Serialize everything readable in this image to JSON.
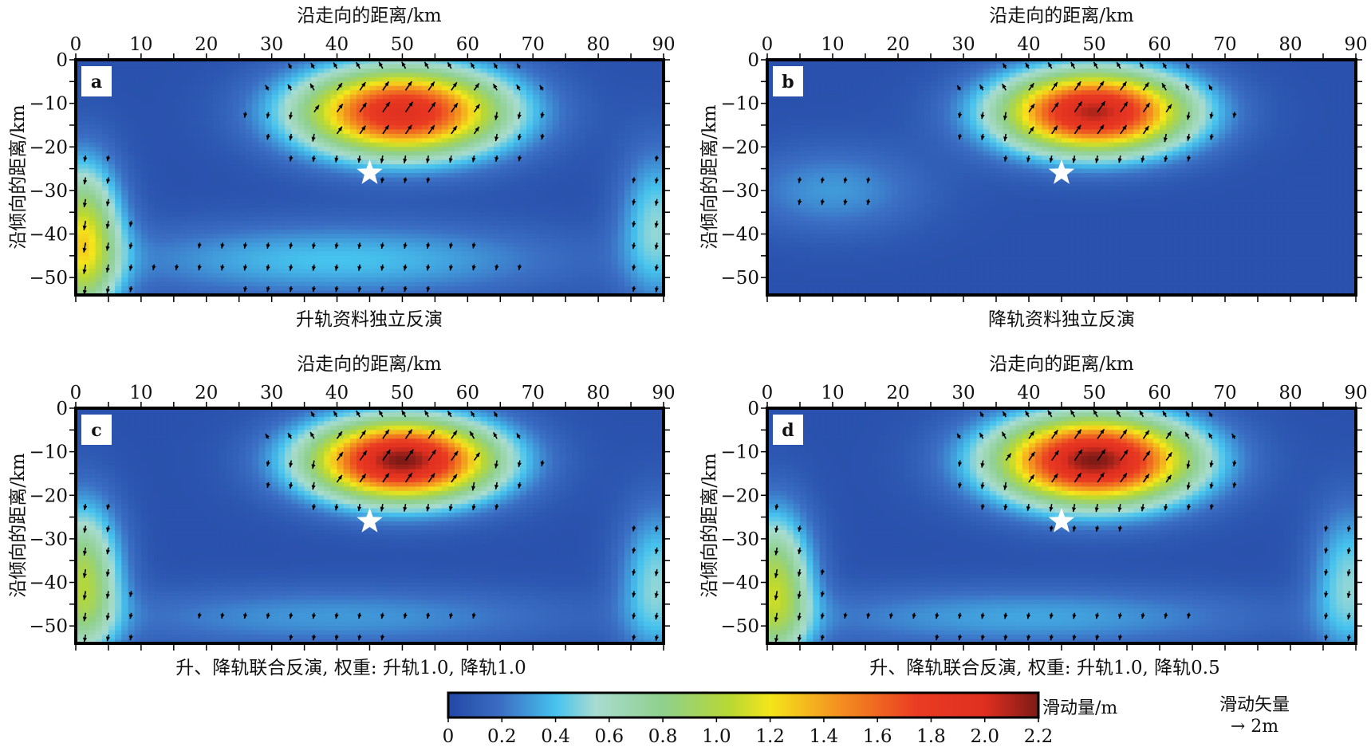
{
  "figure": {
    "colorbar": {
      "label": "滑动量/m",
      "min": 0,
      "max": 2.2,
      "ticks": [
        "0",
        "0.2",
        "0.4",
        "0.6",
        "0.8",
        "1.0",
        "1.2",
        "1.4",
        "1.6",
        "1.8",
        "2.0",
        "2.2"
      ],
      "stops": [
        {
          "v": 0.0,
          "c": "#2347a5"
        },
        {
          "v": 0.2,
          "c": "#3b6fc4"
        },
        {
          "v": 0.4,
          "c": "#46c3ee"
        },
        {
          "v": 0.55,
          "c": "#a8dcd0"
        },
        {
          "v": 0.8,
          "c": "#8fd08c"
        },
        {
          "v": 1.05,
          "c": "#b8d833"
        },
        {
          "v": 1.2,
          "c": "#f4e61b"
        },
        {
          "v": 1.45,
          "c": "#f49220"
        },
        {
          "v": 1.75,
          "c": "#ea3b22"
        },
        {
          "v": 2.0,
          "c": "#df2f20"
        },
        {
          "v": 2.2,
          "c": "#7d1a16"
        }
      ]
    },
    "vector_legend": {
      "title": "滑动矢量",
      "scale_label": "→ 2m"
    },
    "epicenter_marker": "white-star"
  },
  "chart_data": [
    {
      "type": "heatmap",
      "panel_label": "a",
      "title": "沿走向的距离/km",
      "caption": "升轨资料独立反演",
      "xlabel": "沿走向的距离/km",
      "ylabel": "沿倾向的距离/km",
      "xlim": [
        0,
        90
      ],
      "ylim": [
        -54,
        0
      ],
      "xticks": [
        "0",
        "10",
        "20",
        "30",
        "40",
        "50",
        "60",
        "70",
        "80",
        "90"
      ],
      "yticks": [
        "0",
        "-10",
        "-20",
        "-30",
        "-40",
        "-50"
      ],
      "epicenter": {
        "x": 45,
        "y": -26
      },
      "peak_slip_m": 1.9,
      "slip_patches": [
        {
          "x": 50,
          "y": -12,
          "sx": 11,
          "sy": 7,
          "amp": 1.9
        },
        {
          "x": 1,
          "y": -42,
          "sx": 4,
          "sy": 12,
          "amp": 1.15
        },
        {
          "x": 40,
          "y": -46,
          "sx": 24,
          "sy": 6,
          "amp": 0.35
        },
        {
          "x": 89,
          "y": -38,
          "sx": 4,
          "sy": 12,
          "amp": 0.45
        }
      ]
    },
    {
      "type": "heatmap",
      "panel_label": "b",
      "title": "沿走向的距离/km",
      "caption": "降轨资料独立反演",
      "xlabel": "沿走向的距离/km",
      "ylabel": "沿倾向的距离/km",
      "xlim": [
        0,
        90
      ],
      "ylim": [
        -54,
        0
      ],
      "xticks": [
        "0",
        "10",
        "20",
        "30",
        "40",
        "50",
        "60",
        "70",
        "80",
        "90"
      ],
      "yticks": [
        "0",
        "-10",
        "-20",
        "-30",
        "-40",
        "-50"
      ],
      "epicenter": {
        "x": 45,
        "y": -26
      },
      "peak_slip_m": 2.05,
      "slip_patches": [
        {
          "x": 50,
          "y": -12,
          "sx": 10,
          "sy": 6.5,
          "amp": 2.05
        },
        {
          "x": 10,
          "y": -30,
          "sx": 10,
          "sy": 7,
          "amp": 0.25
        }
      ]
    },
    {
      "type": "heatmap",
      "panel_label": "c",
      "title": "沿走向的距离/km",
      "caption": "升、降轨联合反演, 权重: 升轨1.0, 降轨1.0",
      "xlabel": "沿走向的距离/km",
      "ylabel": "沿倾向的距离/km",
      "xlim": [
        0,
        90
      ],
      "ylim": [
        -54,
        0
      ],
      "xticks": [
        "0",
        "10",
        "20",
        "30",
        "40",
        "50",
        "60",
        "70",
        "80",
        "90"
      ],
      "yticks": [
        "0",
        "-10",
        "-20",
        "-30",
        "-40",
        "-50"
      ],
      "epicenter": {
        "x": 45,
        "y": -26
      },
      "peak_slip_m": 2.15,
      "slip_patches": [
        {
          "x": 50,
          "y": -12,
          "sx": 10,
          "sy": 6.5,
          "amp": 2.15
        },
        {
          "x": 1,
          "y": -40,
          "sx": 4,
          "sy": 12,
          "amp": 0.95
        },
        {
          "x": 40,
          "y": -48,
          "sx": 26,
          "sy": 5,
          "amp": 0.25
        },
        {
          "x": 89,
          "y": -40,
          "sx": 4,
          "sy": 12,
          "amp": 0.45
        }
      ]
    },
    {
      "type": "heatmap",
      "panel_label": "d",
      "title": "沿走向的距离/km",
      "caption": "升、降轨联合反演, 权重: 升轨1.0, 降轨0.5",
      "xlabel": "沿走向的距离/km",
      "ylabel": "沿倾向的距离/km",
      "xlim": [
        0,
        90
      ],
      "ylim": [
        -54,
        0
      ],
      "xticks": [
        "0",
        "10",
        "20",
        "30",
        "40",
        "50",
        "60",
        "70",
        "80",
        "90"
      ],
      "yticks": [
        "0",
        "-10",
        "-20",
        "-30",
        "-40",
        "-50"
      ],
      "epicenter": {
        "x": 45,
        "y": -26
      },
      "peak_slip_m": 2.15,
      "slip_patches": [
        {
          "x": 50,
          "y": -12,
          "sx": 10.5,
          "sy": 7,
          "amp": 2.15
        },
        {
          "x": 1,
          "y": -42,
          "sx": 4,
          "sy": 12,
          "amp": 1.0
        },
        {
          "x": 40,
          "y": -48,
          "sx": 26,
          "sy": 5,
          "amp": 0.28
        },
        {
          "x": 89,
          "y": -40,
          "sx": 4,
          "sy": 12,
          "amp": 0.45
        }
      ]
    }
  ]
}
